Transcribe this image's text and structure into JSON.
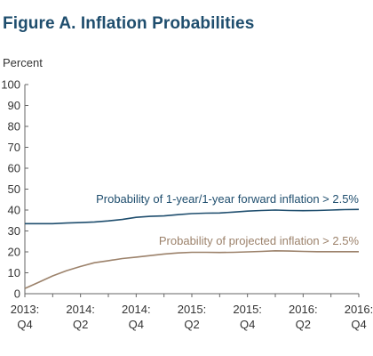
{
  "figure": {
    "title": "Figure A. Inflation Probabilities"
  },
  "chart_data": {
    "type": "line",
    "title": "Figure A. Inflation Probabilities",
    "ylabel": "Percent",
    "xlabel": "",
    "ylim": [
      0,
      100
    ],
    "yticks": [
      0,
      10,
      20,
      30,
      40,
      50,
      60,
      70,
      80,
      90,
      100
    ],
    "xrange": [
      0,
      12
    ],
    "xticks": [
      {
        "x": 0,
        "line1": "2013:",
        "line2": "Q4"
      },
      {
        "x": 2,
        "line1": "2014:",
        "line2": "Q2"
      },
      {
        "x": 4,
        "line1": "2014:",
        "line2": "Q4"
      },
      {
        "x": 6,
        "line1": "2015:",
        "line2": "Q2"
      },
      {
        "x": 8,
        "line1": "2015:",
        "line2": "Q4"
      },
      {
        "x": 10,
        "line1": "2016:",
        "line2": "Q2"
      },
      {
        "x": 12,
        "line1": "2016:",
        "line2": "Q4"
      }
    ],
    "grid": false,
    "series": [
      {
        "name": "Probability of 1-year/1-year forward inflation > 2.5%",
        "color": "#1f4e6e",
        "x": [
          0,
          0.5,
          1,
          1.5,
          2,
          2.5,
          3,
          3.5,
          4,
          4.5,
          5,
          5.5,
          6,
          6.5,
          7,
          7.5,
          8,
          8.5,
          9,
          9.5,
          10,
          10.5,
          11,
          11.5,
          12
        ],
        "values": [
          33.5,
          33.5,
          33.5,
          33.8,
          34,
          34.3,
          34.8,
          35.5,
          36.5,
          37,
          37.2,
          37.8,
          38.3,
          38.5,
          38.6,
          39,
          39.5,
          39.8,
          40,
          39.8,
          39.7,
          39.8,
          40,
          40.2,
          40.3
        ]
      },
      {
        "name": "Probability of projected inflation > 2.5%",
        "color": "#9c826b",
        "x": [
          0,
          0.5,
          1,
          1.5,
          2,
          2.5,
          3,
          3.5,
          4,
          4.5,
          5,
          5.5,
          6,
          6.5,
          7,
          7.5,
          8,
          8.5,
          9,
          9.5,
          10,
          10.5,
          11,
          11.5,
          12
        ],
        "values": [
          2.5,
          5.5,
          8.5,
          11,
          13,
          14.8,
          15.8,
          16.8,
          17.5,
          18.2,
          19,
          19.5,
          19.8,
          19.8,
          19.7,
          19.8,
          20,
          20.2,
          20.5,
          20.4,
          20.2,
          20.1,
          20.1,
          20.1,
          20.1
        ]
      }
    ]
  }
}
